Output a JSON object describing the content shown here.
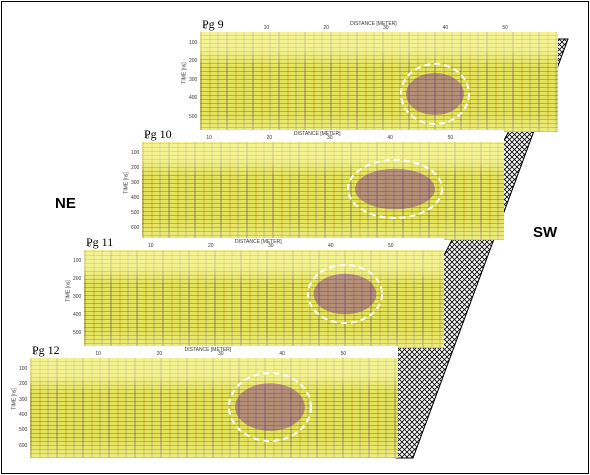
{
  "panels": [
    {
      "label": "Pg 9",
      "x_axis_title": "DISTANCE [METER]",
      "y_axis_title": "TIME [ns]",
      "x_ticks": [
        "0",
        "10",
        "20",
        "30",
        "40",
        "50"
      ],
      "y_ticks": [
        "100",
        "200",
        "300",
        "400",
        "500"
      ]
    },
    {
      "label": "Pg 10",
      "x_axis_title": "DISTANCE [METER]",
      "y_axis_title": "TIME [ns]",
      "x_ticks": [
        "0",
        "10",
        "20",
        "30",
        "40",
        "50"
      ],
      "y_ticks": [
        "100",
        "200",
        "300",
        "400",
        "500",
        "600"
      ]
    },
    {
      "label": "Pg 11",
      "x_axis_title": "DISTANCE [METER]",
      "y_axis_title": "TIME [ns]",
      "x_ticks": [
        "0",
        "10",
        "20",
        "30",
        "40",
        "50"
      ],
      "y_ticks": [
        "100",
        "200",
        "300",
        "400",
        "500"
      ]
    },
    {
      "label": "Pg 12",
      "x_axis_title": "DISTANCE [METER]",
      "y_axis_title": "TIME [ns]",
      "x_ticks": [
        "0",
        "10",
        "20",
        "30",
        "40",
        "50"
      ],
      "y_ticks": [
        "100",
        "200",
        "300",
        "400",
        "500",
        "600"
      ]
    }
  ],
  "directions": {
    "left": "NE",
    "right": "SW"
  }
}
